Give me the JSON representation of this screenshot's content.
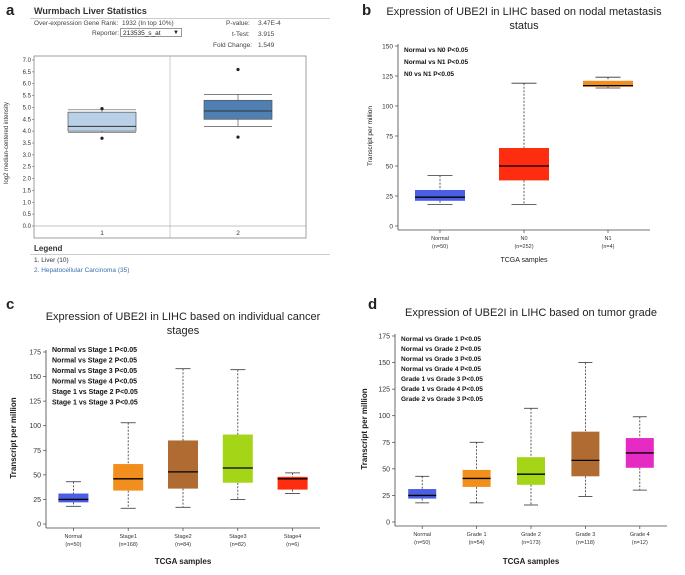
{
  "panels": {
    "a": {
      "letter": "a",
      "header": "Wurmbach Liver Statistics",
      "stats": {
        "rank_label": "Over-expression Gene Rank:",
        "rank_value": "1932 (In top 10%)",
        "reporter_label": "Reporter:",
        "reporter_value": "213535_s_at",
        "pvalue_label": "P-value:",
        "pvalue_value": "3.47E-4",
        "ttest_label": "t-Test:",
        "ttest_value": "3.915",
        "fold_label": "Fold Change:",
        "fold_value": "1.549"
      },
      "legend_title": "Legend",
      "legend_items": [
        "1. Liver (10)",
        "2. Hepatocellular Carcinoma (35)"
      ],
      "colors": {
        "box1": "#b9d0e6",
        "box2": "#4f7fb3",
        "legend2": "#3a6fb0"
      }
    },
    "b": {
      "letter": "b"
    },
    "c": {
      "letter": "c"
    },
    "d": {
      "letter": "d"
    }
  },
  "chart_data": [
    {
      "id": "a",
      "type": "box",
      "title": "",
      "ylabel": "log2 median-centered intensity",
      "ylim": [
        0.0,
        7.0
      ],
      "yticks": [
        "0.0",
        "0.5",
        "1.0",
        "1.5",
        "2.0",
        "2.5",
        "3.0",
        "3.5",
        "4.0",
        "4.5",
        "5.0",
        "5.5",
        "6.0",
        "6.5",
        "7.0"
      ],
      "categories": [
        "1",
        "2"
      ],
      "boxes": [
        {
          "name": "1",
          "whislo": 3.95,
          "q1": 4.0,
          "med": 4.2,
          "q3": 4.8,
          "whishi": 4.9,
          "outliers": [
            3.7,
            4.95
          ],
          "color": "#b9d0e6"
        },
        {
          "name": "2",
          "whislo": 4.2,
          "q1": 4.5,
          "med": 4.85,
          "q3": 5.3,
          "whishi": 5.55,
          "outliers": [
            3.75,
            6.6
          ],
          "color": "#4f7fb3"
        }
      ]
    },
    {
      "id": "b",
      "type": "box",
      "title": [
        "Expression of UBE2I in LIHC based on nodal metastasis",
        "status"
      ],
      "xlabel": "TCGA samples",
      "ylabel": "Transcript per million",
      "ylim": [
        0,
        150
      ],
      "yticks": [
        "0",
        "25",
        "50",
        "75",
        "100",
        "125",
        "150"
      ],
      "annotations": [
        "Normal vs N0  P<0.05",
        "Normal vs N1  P<0.05",
        "N0 vs N1  P<0.05"
      ],
      "categories": [
        "Normal",
        "N0",
        "N1"
      ],
      "counts": [
        "(n=50)",
        "(n=252)",
        "(n=4)"
      ],
      "boxes": [
        {
          "name": "Normal",
          "whislo": 18,
          "q1": 21,
          "med": 24,
          "q3": 30,
          "whishi": 42,
          "color": "#4a5ee6"
        },
        {
          "name": "N0",
          "whislo": 18,
          "q1": 38,
          "med": 50,
          "q3": 65,
          "whishi": 119,
          "color": "#ff2d0f"
        },
        {
          "name": "N1",
          "whislo": 115,
          "q1": 116,
          "med": 117,
          "q3": 121,
          "whishi": 124,
          "color": "#f28e1c"
        }
      ]
    },
    {
      "id": "c",
      "type": "box",
      "title": [
        "Expression of UBE2I in LIHC based on individual cancer",
        "stages"
      ],
      "xlabel": "TCGA samples",
      "ylabel": "Transcript per million",
      "ylim": [
        0,
        175
      ],
      "yticks": [
        "0",
        "25",
        "50",
        "75",
        "100",
        "125",
        "150",
        "175"
      ],
      "annotations": [
        "Normal vs Stage 1  P<0.05",
        "Normal vs Stage 2  P<0.05",
        "Normal vs Stage 3  P<0.05",
        "Normal vs Stage 4  P<0.05",
        "Stage 1 vs Stage 2  P<0.05",
        "Stage 1 vs Stage 3  P<0.05"
      ],
      "categories": [
        "Normal",
        "Stage1",
        "Stage2",
        "Stage3",
        "Stage4"
      ],
      "counts": [
        "(n=50)",
        "(n=168)",
        "(n=84)",
        "(n=82)",
        "(n=6)"
      ],
      "boxes": [
        {
          "name": "Normal",
          "whislo": 18,
          "q1": 22,
          "med": 25,
          "q3": 31,
          "whishi": 43,
          "color": "#4a5ee6"
        },
        {
          "name": "Stage1",
          "whislo": 16,
          "q1": 34,
          "med": 46,
          "q3": 61,
          "whishi": 103,
          "color": "#f28e1c"
        },
        {
          "name": "Stage2",
          "whislo": 17,
          "q1": 36,
          "med": 53,
          "q3": 85,
          "whishi": 158,
          "color": "#b06b32"
        },
        {
          "name": "Stage3",
          "whislo": 25,
          "q1": 42,
          "med": 57,
          "q3": 91,
          "whishi": 157,
          "color": "#a4d617"
        },
        {
          "name": "Stage4",
          "whislo": 31,
          "q1": 35,
          "med": 46,
          "q3": 48,
          "whishi": 52,
          "color": "#ff2d0f"
        }
      ]
    },
    {
      "id": "d",
      "type": "box",
      "title": [
        "Expression of UBE2I in LIHC based on tumor grade"
      ],
      "xlabel": "TCGA samples",
      "ylabel": "Transcript per million",
      "ylim": [
        0,
        175
      ],
      "yticks": [
        "0",
        "25",
        "50",
        "75",
        "100",
        "125",
        "150",
        "175"
      ],
      "annotations": [
        "Normal vs Grade 1  P<0.05",
        "Normal vs Grade 2  P<0.05",
        "Normal vs Grade 3  P<0.05",
        "Normal vs Grade 4  P<0.05",
        "Grade 1 vs Grade 3  P<0.05",
        "Grade 1 vs Grade 4  P<0.05",
        "Grade 2 vs Grade 3  P<0.05"
      ],
      "categories": [
        "Normal",
        "Grade 1",
        "Grade 2",
        "Grade 3",
        "Grade 4"
      ],
      "counts": [
        "(n=50)",
        "(n=54)",
        "(n=173)",
        "(n=118)",
        "(n=12)"
      ],
      "boxes": [
        {
          "name": "Normal",
          "whislo": 18,
          "q1": 22,
          "med": 25,
          "q3": 31,
          "whishi": 43,
          "color": "#4a5ee6"
        },
        {
          "name": "Grade 1",
          "whislo": 18,
          "q1": 33,
          "med": 41,
          "q3": 49,
          "whishi": 75,
          "color": "#f28e1c"
        },
        {
          "name": "Grade 2",
          "whislo": 16,
          "q1": 35,
          "med": 45,
          "q3": 61,
          "whishi": 107,
          "color": "#a4d617"
        },
        {
          "name": "Grade 3",
          "whislo": 24,
          "q1": 43,
          "med": 58,
          "q3": 85,
          "whishi": 150,
          "color": "#b06b32"
        },
        {
          "name": "Grade 4",
          "whislo": 30,
          "q1": 51,
          "med": 65,
          "q3": 79,
          "whishi": 99,
          "color": "#e62bc4"
        }
      ]
    }
  ]
}
